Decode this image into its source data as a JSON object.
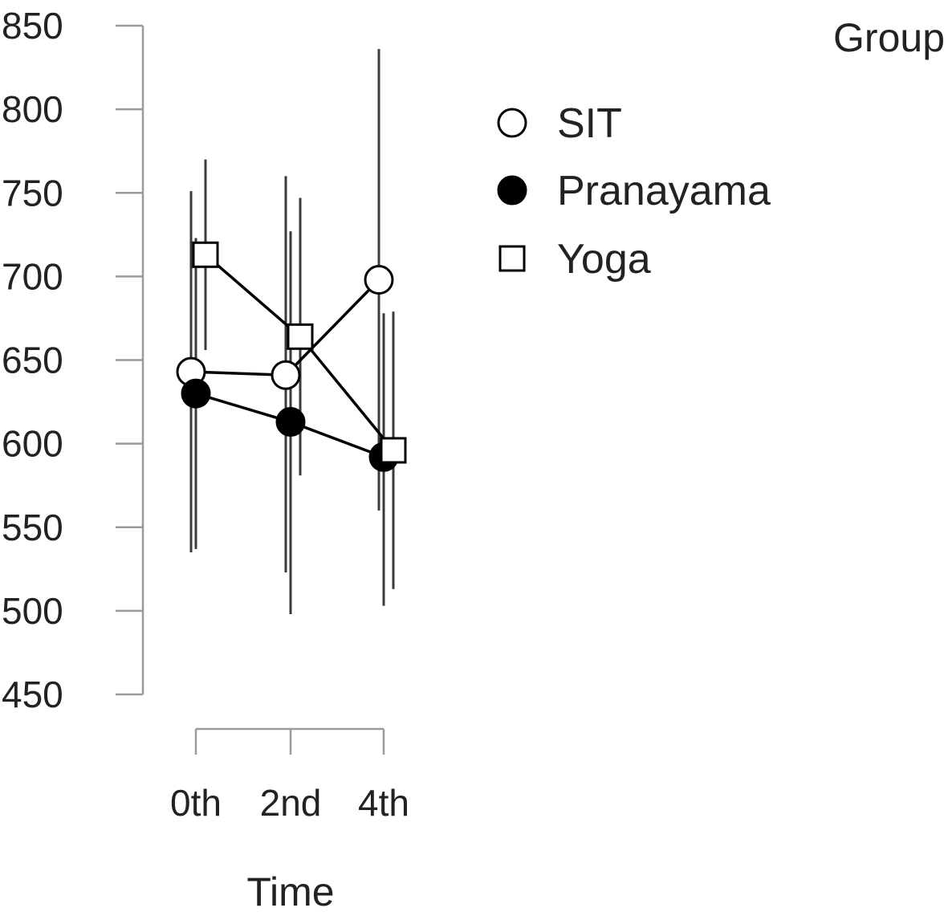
{
  "chart_data": {
    "type": "line",
    "title": "",
    "xlabel": "Time",
    "ylabel": "",
    "categories": [
      "0th",
      "2nd",
      "4th"
    ],
    "ylim": [
      450,
      850
    ],
    "yticks": [
      "450",
      "500",
      "550",
      "600",
      "650",
      "700",
      "750",
      "800",
      "850"
    ],
    "grid": false,
    "legend_title": "Group",
    "legend_position": "top-right",
    "series": [
      {
        "name": "SIT",
        "marker": "circle-open",
        "values": [
          643,
          641,
          698
        ],
        "error_low": [
          535,
          523,
          560
        ],
        "error_high": [
          751,
          760,
          836
        ]
      },
      {
        "name": "Pranayama",
        "marker": "circle-filled",
        "values": [
          630,
          613,
          592
        ],
        "error_low": [
          537,
          498,
          503
        ],
        "error_high": [
          723,
          727,
          678
        ]
      },
      {
        "name": "Yoga",
        "marker": "square-open",
        "values": [
          713,
          664,
          596
        ],
        "error_low": [
          656,
          581,
          513
        ],
        "error_high": [
          770,
          747,
          679
        ]
      }
    ],
    "colors": {
      "line": "#000000",
      "axis": "#9a9a9a",
      "marker_fill_open": "#ffffff",
      "marker_fill_filled": "#000000"
    }
  }
}
